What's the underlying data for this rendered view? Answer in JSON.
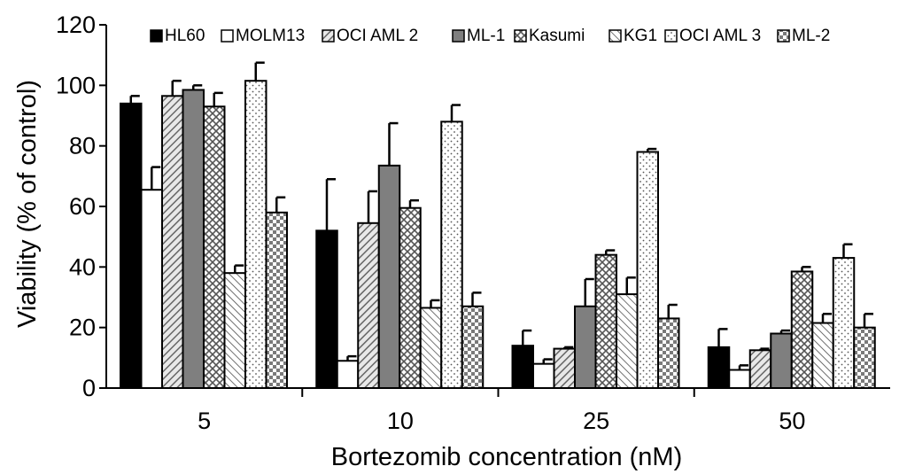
{
  "chart_data": {
    "type": "bar",
    "title": "",
    "xlabel": "Bortezomib concentration (nM)",
    "ylabel": "Viability (% of control)",
    "ylim": [
      0,
      120
    ],
    "yticks": [
      "0",
      "20",
      "40",
      "60",
      "80",
      "100",
      "120"
    ],
    "categories": [
      "5",
      "10",
      "25",
      "50"
    ],
    "legend_position": "top",
    "grid": false,
    "series": [
      {
        "name": "HL60",
        "values": [
          94,
          52,
          14,
          13.5
        ],
        "errors": [
          2.5,
          17,
          5,
          6
        ],
        "pattern": "solid-black"
      },
      {
        "name": "MOLM13",
        "values": [
          65.5,
          9,
          8,
          6
        ],
        "errors": [
          7.5,
          1.5,
          1.5,
          1.5
        ],
        "pattern": "white"
      },
      {
        "name": "OCI AML 2",
        "values": [
          96.5,
          54.5,
          13,
          12.5
        ],
        "errors": [
          5,
          10.5,
          0.5,
          0.5
        ],
        "pattern": "diagonal-dense"
      },
      {
        "name": "ML-1",
        "values": [
          98.5,
          73.5,
          27,
          18
        ],
        "errors": [
          1.5,
          14,
          9,
          1
        ],
        "pattern": "solid-gray"
      },
      {
        "name": "Kasumi",
        "values": [
          93,
          59.5,
          44,
          38.5
        ],
        "errors": [
          4.5,
          2.5,
          1.5,
          1.5
        ],
        "pattern": "crosshatch"
      },
      {
        "name": "KG1",
        "values": [
          38,
          26.5,
          31,
          21.5
        ],
        "errors": [
          2.5,
          2.5,
          5.5,
          3
        ],
        "pattern": "diagonal-back"
      },
      {
        "name": "OCI AML 3",
        "values": [
          101.5,
          88,
          78,
          43
        ],
        "errors": [
          6,
          5.5,
          1,
          4.5
        ],
        "pattern": "dotted"
      },
      {
        "name": "ML-2",
        "values": [
          58,
          27,
          23,
          20
        ],
        "errors": [
          5,
          4.5,
          4.5,
          4.5
        ],
        "pattern": "checker"
      }
    ]
  }
}
